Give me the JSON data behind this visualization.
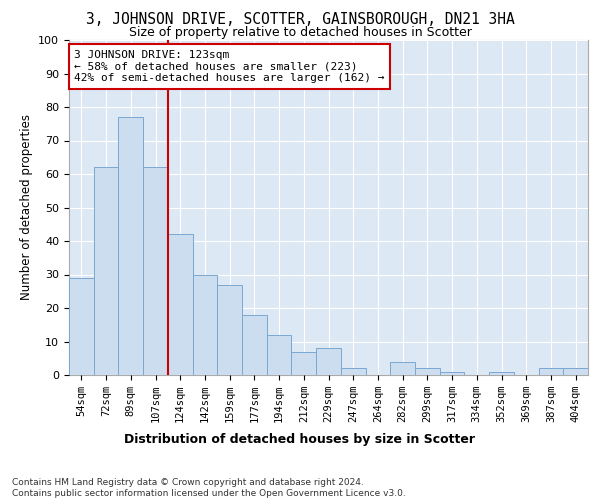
{
  "title": "3, JOHNSON DRIVE, SCOTTER, GAINSBOROUGH, DN21 3HA",
  "subtitle": "Size of property relative to detached houses in Scotter",
  "xlabel": "Distribution of detached houses by size in Scotter",
  "ylabel": "Number of detached properties",
  "categories": [
    "54sqm",
    "72sqm",
    "89sqm",
    "107sqm",
    "124sqm",
    "142sqm",
    "159sqm",
    "177sqm",
    "194sqm",
    "212sqm",
    "229sqm",
    "247sqm",
    "264sqm",
    "282sqm",
    "299sqm",
    "317sqm",
    "334sqm",
    "352sqm",
    "369sqm",
    "387sqm",
    "404sqm"
  ],
  "values": [
    29,
    62,
    77,
    62,
    42,
    30,
    27,
    18,
    12,
    7,
    8,
    2,
    0,
    4,
    2,
    1,
    0,
    1,
    0,
    2,
    2
  ],
  "bar_color": "#ccddf0",
  "bar_edge_color": "#7aa8d0",
  "annotation_text": "3 JOHNSON DRIVE: 123sqm\n← 58% of detached houses are smaller (223)\n42% of semi-detached houses are larger (162) →",
  "annotation_box_color": "#ffffff",
  "annotation_box_edge_color": "#cc0000",
  "property_line_color": "#cc0000",
  "plot_bg_color": "#dde8f5",
  "footer_text": "Contains HM Land Registry data © Crown copyright and database right 2024.\nContains public sector information licensed under the Open Government Licence v3.0.",
  "ylim": [
    0,
    100
  ],
  "title_fontsize": 10.5,
  "subtitle_fontsize": 9,
  "ylabel_fontsize": 8.5,
  "xlabel_fontsize": 9,
  "tick_fontsize": 8,
  "xtick_fontsize": 7.5,
  "footer_fontsize": 6.5,
  "annotation_fontsize": 8
}
